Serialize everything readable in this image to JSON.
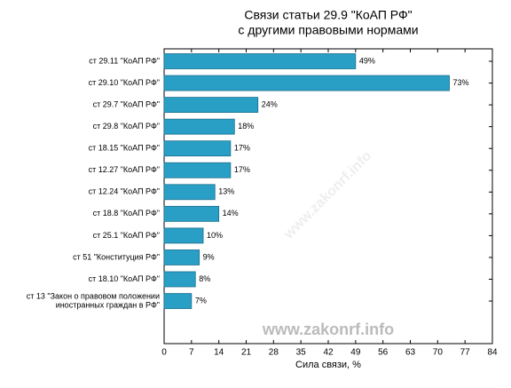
{
  "chart_data": {
    "type": "bar",
    "orientation": "horizontal",
    "title": [
      "Связи статьи 29.9 \"КоАП РФ\"",
      "с другими правовыми нормами"
    ],
    "categories": [
      "ст 29.11 \"КоАП РФ\"",
      "ст 29.10 \"КоАП РФ\"",
      "ст 29.7 \"КоАП РФ\"",
      "ст 29.8 \"КоАП РФ\"",
      "ст 18.15 \"КоАП РФ\"",
      "ст 12.27 \"КоАП РФ\"",
      "ст 12.24 \"КоАП РФ\"",
      "ст 18.8 \"КоАП РФ\"",
      "ст 25.1 \"КоАП РФ\"",
      "ст 51 \"Конституция РФ\"",
      "ст 18.10 \"КоАП РФ\"",
      [
        "ст 13 \"Закон о правовом положении",
        "иностранных граждан в РФ\""
      ]
    ],
    "values": [
      49,
      73,
      24,
      18,
      17,
      17,
      13,
      14,
      10,
      9,
      8,
      7
    ],
    "value_labels": [
      "49%",
      "73%",
      "24%",
      "18%",
      "17%",
      "17%",
      "13%",
      "14%",
      "10%",
      "9%",
      "8%",
      "7%"
    ],
    "color": "#2a9fc6",
    "xlabel": "Сила связи, %",
    "xlim": [
      0,
      84
    ],
    "xticks": [
      0,
      7,
      14,
      21,
      28,
      35,
      42,
      49,
      56,
      63,
      70,
      77,
      84
    ],
    "watermark": "www.zakonrf.info"
  }
}
